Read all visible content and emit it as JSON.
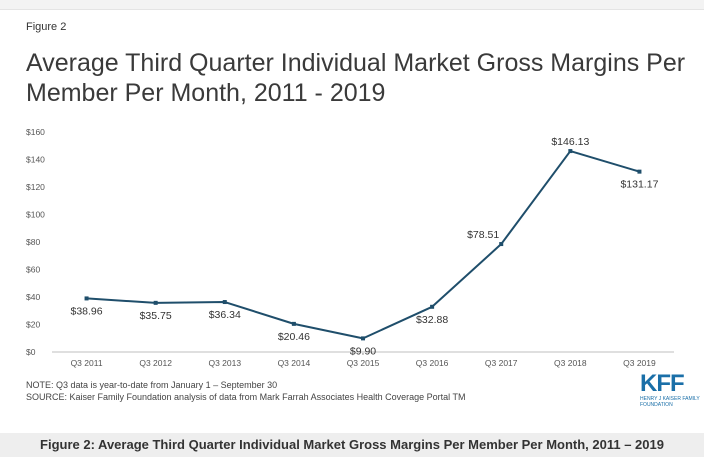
{
  "figure_label": "Figure 2",
  "chart_data": {
    "type": "line",
    "title": "Average Third Quarter Individual Market Gross Margins Per Member Per Month, 2011 - 2019",
    "categories": [
      "Q3 2011",
      "Q3 2012",
      "Q3 2013",
      "Q3 2014",
      "Q3 2015",
      "Q3 2016",
      "Q3 2017",
      "Q3 2018",
      "Q3 2019"
    ],
    "values": [
      38.96,
      35.75,
      36.34,
      20.46,
      9.9,
      32.88,
      78.51,
      146.13,
      131.17
    ],
    "data_labels": [
      "$38.96",
      "$35.75",
      "$36.34",
      "$20.46",
      "$9.90",
      "$32.88",
      "$78.51",
      "$146.13",
      "$131.17"
    ],
    "label_positions": [
      "below",
      "below",
      "below",
      "below",
      "below",
      "below",
      "above-left",
      "above",
      "below"
    ],
    "y_ticks": [
      0,
      20,
      40,
      60,
      80,
      100,
      120,
      140,
      160
    ],
    "y_tick_labels": [
      "$0",
      "$20",
      "$40",
      "$60",
      "$80",
      "$100",
      "$120",
      "$140",
      "$160"
    ],
    "ylim": [
      0,
      160
    ],
    "xlabel": "",
    "ylabel": "",
    "grid": false,
    "line_color": "#1f4e6b"
  },
  "notes": {
    "note": "NOTE: Q3 data is year-to-date from January 1 – September 30",
    "source": "SOURCE: Kaiser Family Foundation analysis of data from Mark Farrah Associates Health Coverage Portal TM"
  },
  "logo": {
    "text": "KFF",
    "subtitle": "HENRY J KAISER FAMILY FOUNDATION"
  },
  "caption": "Figure 2: Average Third Quarter Individual Market Gross Margins Per Member Per Month, 2011 – 2019"
}
